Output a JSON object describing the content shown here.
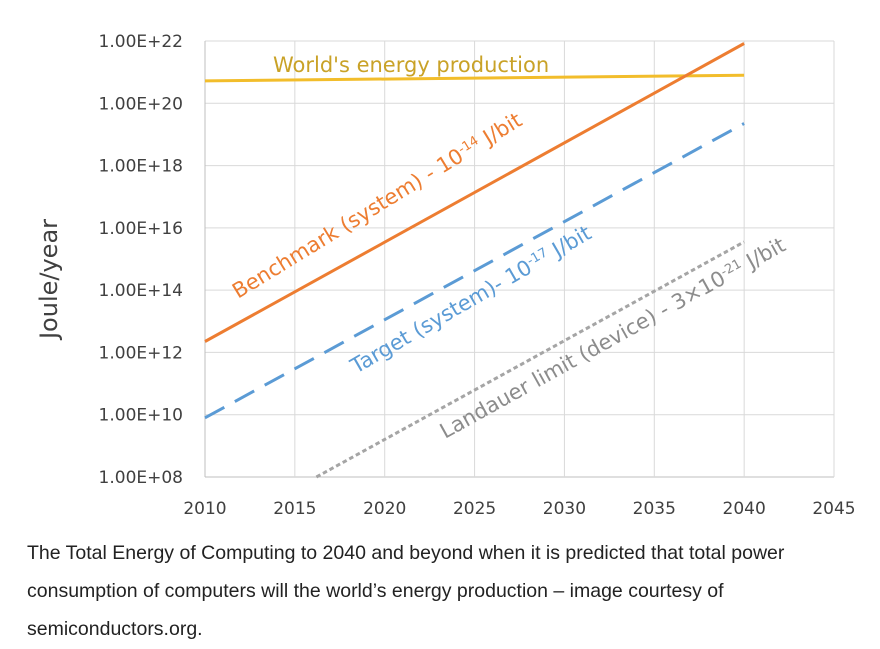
{
  "chart_data": {
    "type": "line",
    "xlabel": "",
    "ylabel": "Joule/year",
    "xlim": [
      2010,
      2045
    ],
    "ylim_log10": [
      8,
      22
    ],
    "yscale": "log",
    "grid": true,
    "x_ticks": [
      "2010",
      "2015",
      "2020",
      "2025",
      "2030",
      "2035",
      "2040",
      "2045"
    ],
    "y_ticks": [
      "1.00E+08",
      "1.00E+10",
      "1.00E+12",
      "1.00E+14",
      "1.00E+16",
      "1.00E+18",
      "1.00E+20",
      "1.00E+22"
    ],
    "series": [
      {
        "id": "world",
        "label_text": "World's energy production",
        "color": "#F2BD2B",
        "style": "solid",
        "x": [
          2010,
          2040
        ],
        "y_log10": [
          20.72,
          20.9
        ]
      },
      {
        "id": "benchmark",
        "label_main": "Benchmark (system) - 10",
        "label_sup": "-14",
        "label_tail": " J/bit",
        "color": "#ED7D31",
        "style": "solid",
        "x": [
          2010,
          2040
        ],
        "y_log10": [
          12.35,
          21.92
        ]
      },
      {
        "id": "target",
        "label_main": "Target (system)- 10",
        "label_sup": "-17",
        "label_tail": " J/bit",
        "color": "#5B9BD5",
        "style": "dashed",
        "x": [
          2010,
          2040
        ],
        "y_log10": [
          9.9,
          19.35
        ]
      },
      {
        "id": "landauer",
        "label_main": "Landauer limit (device) - 3×10",
        "label_sup": "-21",
        "label_tail": " J/bit",
        "color": "#A5A5A5",
        "style": "dotted",
        "x": [
          2016.2,
          2040
        ],
        "y_log10": [
          8.0,
          15.55
        ]
      }
    ]
  },
  "caption": "The Total Energy of Computing to 2040 and beyond when it is predicted that total power consumption of computers will the world’s energy production – image courtesy of semiconductors.org."
}
